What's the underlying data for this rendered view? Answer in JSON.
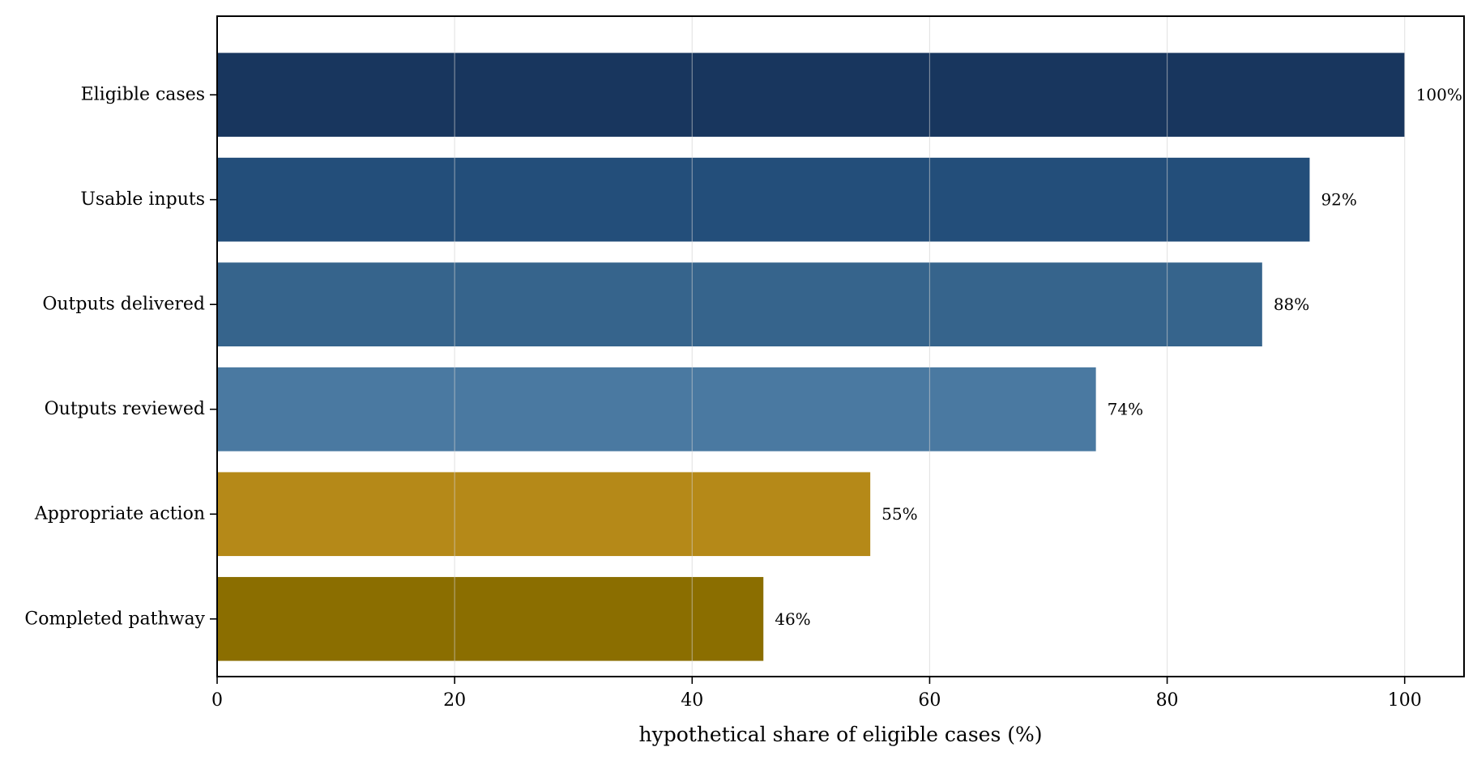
{
  "chart_data": {
    "type": "bar",
    "orientation": "horizontal",
    "categories": [
      "Eligible cases",
      "Usable inputs",
      "Outputs delivered",
      "Outputs reviewed",
      "Appropriate action",
      "Completed pathway"
    ],
    "values": [
      100,
      92,
      88,
      74,
      55,
      46
    ],
    "data_labels": [
      "100%",
      "92%",
      "88%",
      "74%",
      "55%",
      "46%"
    ],
    "bar_colors": [
      "#18365e",
      "#234e7a",
      "#36648c",
      "#4a79a1",
      "#b58918",
      "#8b6e00"
    ],
    "xlabel": "hypothetical share of eligible cases (%)",
    "ylabel": "",
    "title": "",
    "xlim": [
      0,
      105
    ],
    "xticks": [
      0,
      20,
      40,
      60,
      80,
      100
    ],
    "xtick_labels": [
      "0",
      "20",
      "40",
      "60",
      "80",
      "100"
    ],
    "grid": "vertical",
    "legend": "none"
  }
}
